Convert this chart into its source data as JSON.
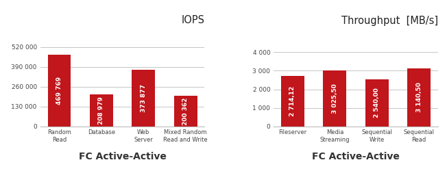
{
  "left": {
    "title": "IOPS",
    "categories": [
      "Random\nRead",
      "Database",
      "Web\nServer",
      "Mixed Random\nRead and Write"
    ],
    "values": [
      469769,
      208979,
      373877,
      200362
    ],
    "labels": [
      "469 769",
      "208 979",
      "373 877",
      "200 362"
    ],
    "bar_color": "#c0161c",
    "xlabel": "FC Active-Active",
    "yticks": [
      0,
      130000,
      260000,
      390000,
      520000
    ],
    "ytick_labels": [
      "0",
      "130 000",
      "260 000",
      "390 000",
      "520 000"
    ],
    "ylim": [
      0,
      560000
    ]
  },
  "right": {
    "title": "Throughput  [MB/s]",
    "categories": [
      "Fileserver",
      "Media\nStreaming",
      "Sequential\nWrite",
      "Sequential\nRead"
    ],
    "values": [
      2714.12,
      3025.5,
      2540.0,
      3140.5
    ],
    "labels": [
      "2 714,12",
      "3 025,50",
      "2 540,00",
      "3 140,50"
    ],
    "bar_color": "#c0161c",
    "xlabel": "FC Active-Active",
    "yticks": [
      0,
      1000,
      2000,
      3000,
      4000
    ],
    "ytick_labels": [
      "0",
      "1 000",
      "2 000",
      "3 000",
      "4 000"
    ],
    "ylim": [
      0,
      4600
    ]
  },
  "background_color": "#ffffff",
  "title_fontsize": 10.5,
  "bar_label_fontsize": 6.5,
  "tick_fontsize": 6.5,
  "xlabel_fontsize": 10,
  "xtick_fontsize": 6.0
}
